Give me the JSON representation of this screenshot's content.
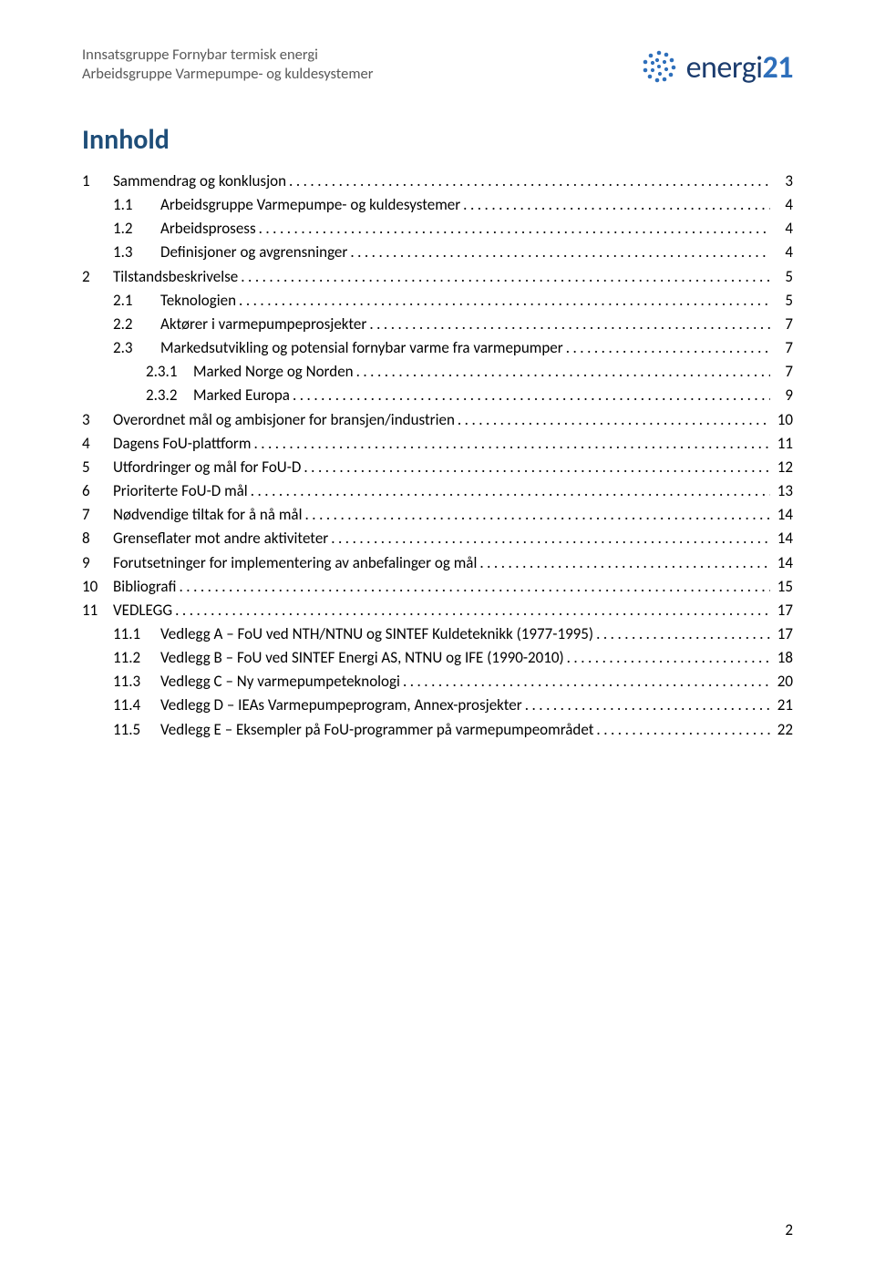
{
  "header": {
    "line1": "Innsatsgruppe Fornybar termisk energi",
    "line2": "Arbeidsgruppe Varmepumpe- og kuldesystemer"
  },
  "logo": {
    "brand": "energi",
    "suffix": "21"
  },
  "title": "Innhold",
  "toc": [
    {
      "level": 1,
      "num": "1",
      "label": "Sammendrag og konklusjon",
      "page": "3"
    },
    {
      "level": 2,
      "num": "1.1",
      "label": "Arbeidsgruppe Varmepumpe- og kuldesystemer",
      "page": "4"
    },
    {
      "level": 2,
      "num": "1.2",
      "label": "Arbeidsprosess",
      "page": "4"
    },
    {
      "level": 2,
      "num": "1.3",
      "label": "Definisjoner og avgrensninger",
      "page": "4"
    },
    {
      "level": 1,
      "num": "2",
      "label": "Tilstandsbeskrivelse",
      "page": "5"
    },
    {
      "level": 2,
      "num": "2.1",
      "label": "Teknologien",
      "page": "5"
    },
    {
      "level": 2,
      "num": "2.2",
      "label": "Aktører i varmepumpeprosjekter",
      "page": "7"
    },
    {
      "level": 2,
      "num": "2.3",
      "label": "Markedsutvikling og potensial fornybar varme fra varmepumper",
      "page": "7"
    },
    {
      "level": 3,
      "num": "2.3.1",
      "label": "Marked Norge og Norden",
      "page": "7"
    },
    {
      "level": 3,
      "num": "2.3.2",
      "label": "Marked Europa",
      "page": "9"
    },
    {
      "level": 1,
      "num": "3",
      "label": "Overordnet mål og ambisjoner for bransjen/industrien",
      "page": "10"
    },
    {
      "level": 1,
      "num": "4",
      "label": "Dagens FoU-plattform",
      "page": "11"
    },
    {
      "level": 1,
      "num": "5",
      "label": "Utfordringer og mål for FoU-D",
      "page": "12"
    },
    {
      "level": 1,
      "num": "6",
      "label": "Prioriterte FoU-D mål",
      "page": "13"
    },
    {
      "level": 1,
      "num": "7",
      "label": "Nødvendige tiltak for å nå mål",
      "page": "14"
    },
    {
      "level": 1,
      "num": "8",
      "label": "Grenseflater mot andre aktiviteter",
      "page": "14"
    },
    {
      "level": 1,
      "num": "9",
      "label": "Forutsetninger for implementering av anbefalinger og mål",
      "page": "14"
    },
    {
      "level": 1,
      "num": "10",
      "label": "Bibliografi",
      "page": "15"
    },
    {
      "level": 1,
      "num": "11",
      "label": "VEDLEGG",
      "page": "17"
    },
    {
      "level": 2,
      "num": "11.1",
      "label": "Vedlegg A – FoU ved NTH/NTNU og SINTEF Kuldeteknikk (1977-1995)",
      "page": "17"
    },
    {
      "level": 2,
      "num": "11.2",
      "label": "Vedlegg B – FoU ved SINTEF Energi AS, NTNU og IFE (1990-2010)",
      "page": "18"
    },
    {
      "level": 2,
      "num": "11.3",
      "label": "Vedlegg C – Ny varmepumpeteknologi",
      "page": "20"
    },
    {
      "level": 2,
      "num": "11.4",
      "label": "Vedlegg D – IEAs Varmepumpeprogram, Annex-prosjekter",
      "page": "21"
    },
    {
      "level": 2,
      "num": "11.5",
      "label": "Vedlegg E – Eksempler på FoU-programmer på varmepumpeområdet",
      "page": "22"
    }
  ],
  "page_number": "2",
  "colors": {
    "header_text": "#595959",
    "title": "#1f4e79",
    "logo_brand": "#1b3c6e",
    "logo_suffix": "#2e6fbb",
    "body": "#000000",
    "background": "#ffffff"
  },
  "fonts": {
    "family": "Calibri",
    "header_size_pt": 12,
    "title_size_pt": 22,
    "body_size_pt": 13,
    "logo_size_pt": 26
  },
  "leader_char": "."
}
